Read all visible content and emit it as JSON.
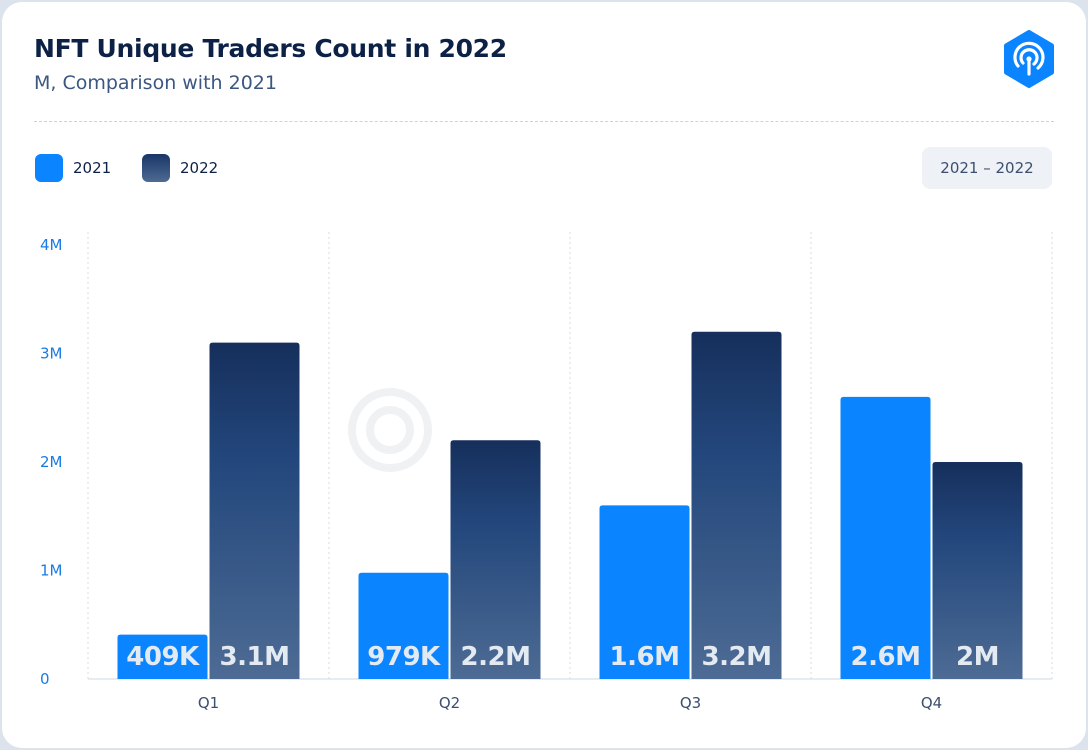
{
  "header": {
    "title": "NFT Unique Traders Count in 2022",
    "subtitle": "M, Comparison with 2021",
    "range_label": "2021 – 2022"
  },
  "legend": [
    {
      "label": "2021",
      "color": "#0a84ff"
    },
    {
      "label": "2022",
      "color": "#1f3f70"
    }
  ],
  "colors": {
    "series_2021": "#0a84ff",
    "series_2022_top": "#162f5c",
    "series_2022_bottom": "#4d6b94",
    "axis_text": "#1a7be6",
    "brand": "#0a84ff"
  },
  "chart_data": {
    "type": "bar",
    "categories": [
      "Q1",
      "Q2",
      "Q3",
      "Q4"
    ],
    "series": [
      {
        "name": "2021",
        "values": [
          0.409,
          0.979,
          1.6,
          2.6
        ],
        "labels": [
          "409K",
          "979K",
          "1.6M",
          "2.6M"
        ]
      },
      {
        "name": "2022",
        "values": [
          3.1,
          2.2,
          3.2,
          2.0
        ],
        "labels": [
          "3.1M",
          "2.2M",
          "3.2M",
          "2M"
        ]
      }
    ],
    "yticks": [
      "0",
      "1M",
      "2M",
      "3M",
      "4M"
    ],
    "ylim": [
      0,
      4
    ],
    "grid": true,
    "legend_position": "top-left"
  }
}
